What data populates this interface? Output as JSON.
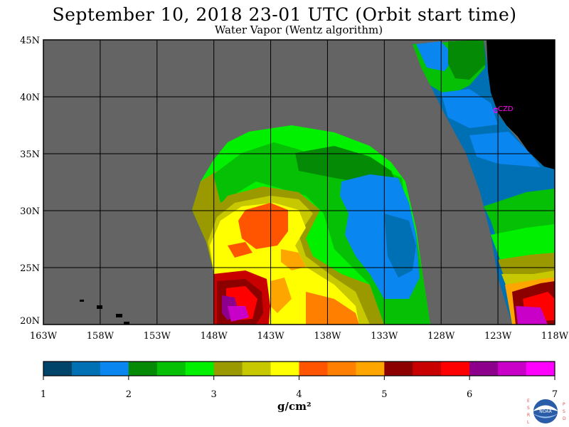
{
  "title": "September 10, 2018  23-01 UTC  (Orbit start time)",
  "subtitle": "Water Vapor (Wentz algorithm)",
  "lat_labels": [
    "45N",
    "40N",
    "35N",
    "30N",
    "25N",
    "20N"
  ],
  "lon_labels": [
    "163W",
    "158W",
    "153W",
    "148W",
    "143W",
    "138W",
    "133W",
    "128W",
    "123W",
    "118W"
  ],
  "station_label": "CZD",
  "colorbar": {
    "ticks": [
      "1",
      "2",
      "3",
      "4",
      "5",
      "6",
      "7"
    ],
    "units": "g/cm²",
    "colors": [
      "#00446a",
      "#0070b4",
      "#0a86f0",
      "#058a05",
      "#05c005",
      "#00f000",
      "#9a9a00",
      "#c8c800",
      "#ffff00",
      "#ff5500",
      "#ff7f00",
      "#ffa500",
      "#8c0000",
      "#c80000",
      "#ff0000",
      "#8c008c",
      "#c800c8",
      "#ff00ff"
    ]
  },
  "colors": {
    "no_data": "#646464",
    "land": "#000000",
    "grid": "#000000",
    "station": "#ff00ff"
  },
  "logo_letters": {
    "left": "ESRL",
    "right": "PSD",
    "center": "NOAA"
  }
}
